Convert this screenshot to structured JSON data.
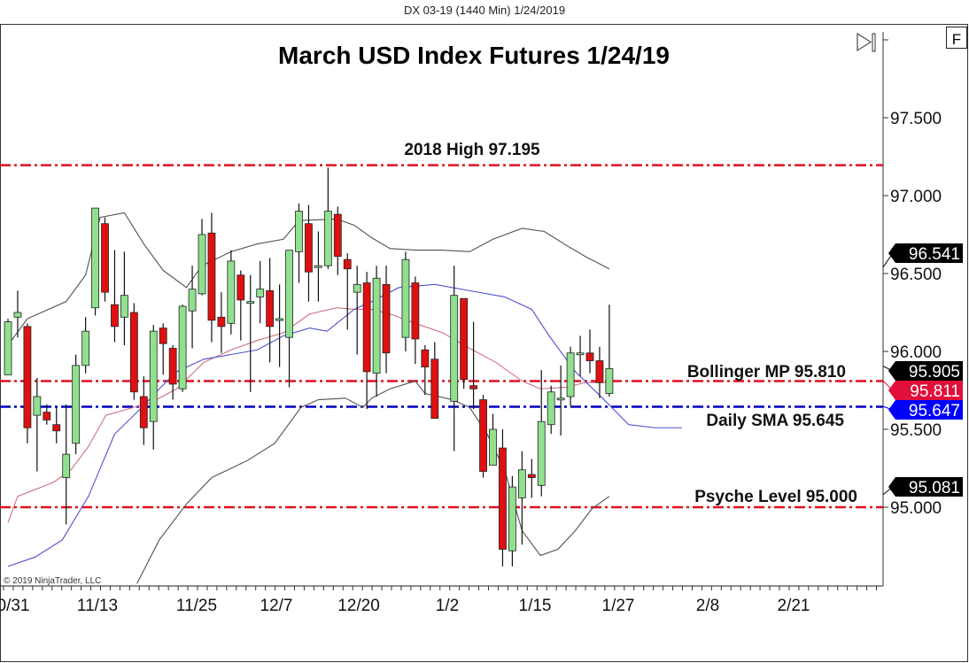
{
  "window_title": "DX 03-19 (1440 Min)  1/24/2019",
  "copyright": "© 2019 NinjaTrader, LLC",
  "buttons": {
    "scroll_end_icon": "play-to-end-icon",
    "f_label": "F"
  },
  "chart_data": {
    "type": "candlestick",
    "title": "March USD Index Futures 1/24/19",
    "ylim": [
      94.45,
      97.9
    ],
    "y_ticks": [
      "97.500",
      "97.000",
      "96.500",
      "96.000",
      "95.500",
      "95.000"
    ],
    "x_tick_labels": [
      "0/31",
      "11/13",
      "11/25",
      "12/7",
      "12/20",
      "1/2",
      "1/15",
      "1/27",
      "2/8",
      "2/21"
    ],
    "colors": {
      "up": "#90e090",
      "down": "#e01010",
      "bollinger_bands": "#505050",
      "bollinger_mid": "#d07080",
      "sma": "#5050d0",
      "level_red": "#e01020",
      "level_blue": "#0000c0"
    },
    "candles_ohlc": [
      [
        95.85,
        96.21,
        95.85,
        96.19
      ],
      [
        96.22,
        96.39,
        96.09,
        96.25
      ],
      [
        96.16,
        96.18,
        95.41,
        95.51
      ],
      [
        95.59,
        95.83,
        95.23,
        95.71
      ],
      [
        95.61,
        95.66,
        95.53,
        95.56
      ],
      [
        95.53,
        95.64,
        95.41,
        95.49
      ],
      [
        95.19,
        95.66,
        94.89,
        95.34
      ],
      [
        95.41,
        95.98,
        95.34,
        95.91
      ],
      [
        95.91,
        96.22,
        95.86,
        96.13
      ],
      [
        96.28,
        96.92,
        96.23,
        96.92
      ],
      [
        96.82,
        96.86,
        96.32,
        96.38
      ],
      [
        96.3,
        96.65,
        96.06,
        96.16
      ],
      [
        96.22,
        96.64,
        96.04,
        96.36
      ],
      [
        96.25,
        96.31,
        95.69,
        95.74
      ],
      [
        95.71,
        95.84,
        95.4,
        95.51
      ],
      [
        95.55,
        96.17,
        95.37,
        96.13
      ],
      [
        96.15,
        96.18,
        95.85,
        96.05
      ],
      [
        96.02,
        96.04,
        95.69,
        95.79
      ],
      [
        95.76,
        96.3,
        95.74,
        96.29
      ],
      [
        96.26,
        96.55,
        96.02,
        96.4
      ],
      [
        96.37,
        96.85,
        96.36,
        96.75
      ],
      [
        96.76,
        96.89,
        96.06,
        96.2
      ],
      [
        96.22,
        96.38,
        95.99,
        96.16
      ],
      [
        96.18,
        96.65,
        96.11,
        96.58
      ],
      [
        96.49,
        96.52,
        96.07,
        96.33
      ],
      [
        96.31,
        96.49,
        95.74,
        96.32
      ],
      [
        96.35,
        96.58,
        96.18,
        96.4
      ],
      [
        96.39,
        96.6,
        95.93,
        96.16
      ],
      [
        96.21,
        96.43,
        95.9,
        96.21
      ],
      [
        96.09,
        96.65,
        95.77,
        96.65
      ],
      [
        96.64,
        96.95,
        96.44,
        96.9
      ],
      [
        96.82,
        96.94,
        96.32,
        96.51
      ],
      [
        96.55,
        96.77,
        96.32,
        96.55
      ],
      [
        96.55,
        97.18,
        96.53,
        96.9
      ],
      [
        96.88,
        96.93,
        96.49,
        96.61
      ],
      [
        96.59,
        96.63,
        96.14,
        96.53
      ],
      [
        96.38,
        96.55,
        95.98,
        96.43
      ],
      [
        96.44,
        96.51,
        95.63,
        95.87
      ],
      [
        95.86,
        96.55,
        95.71,
        96.47
      ],
      [
        96.43,
        96.55,
        95.86,
        95.99
      ],
      null,
      [
        96.09,
        96.64,
        96.0,
        96.59
      ],
      [
        96.44,
        96.48,
        95.92,
        96.08
      ],
      [
        96.01,
        96.04,
        95.72,
        95.9
      ],
      [
        95.95,
        96.06,
        95.57,
        95.57
      ],
      null,
      [
        95.68,
        96.55,
        95.36,
        96.36
      ],
      [
        96.34,
        96.34,
        95.76,
        95.82
      ],
      [
        95.78,
        96.19,
        95.63,
        95.76
      ],
      [
        95.69,
        95.72,
        95.19,
        95.23
      ],
      [
        95.27,
        95.6,
        95.27,
        95.5
      ],
      [
        95.38,
        95.5,
        94.62,
        94.73
      ],
      [
        94.72,
        95.2,
        94.62,
        95.13
      ],
      [
        95.06,
        95.36,
        94.76,
        95.24
      ],
      [
        95.21,
        95.31,
        95.06,
        95.19
      ],
      [
        95.14,
        95.88,
        95.07,
        95.55
      ],
      [
        95.53,
        95.78,
        95.47,
        95.74
      ],
      [
        95.7,
        95.91,
        95.46,
        95.7
      ],
      [
        95.71,
        96.03,
        95.65,
        95.99
      ],
      [
        95.99,
        96.1,
        95.84,
        95.99
      ],
      [
        95.99,
        96.14,
        95.86,
        95.94
      ],
      [
        95.94,
        96.03,
        95.7,
        95.8
      ],
      [
        95.73,
        96.3,
        95.71,
        95.89
      ]
    ],
    "bollinger_upper": [
      [
        0,
        96.04
      ],
      [
        2,
        96.21
      ],
      [
        6,
        96.32
      ],
      [
        8,
        96.49
      ],
      [
        9.5,
        96.86
      ],
      [
        12,
        96.89
      ],
      [
        14,
        96.69
      ],
      [
        16,
        96.52
      ],
      [
        18.4,
        96.41
      ],
      [
        20,
        96.55
      ],
      [
        23,
        96.64
      ],
      [
        25.7,
        96.69
      ],
      [
        28.4,
        96.72
      ],
      [
        30,
        96.84
      ],
      [
        33.9,
        96.85
      ],
      [
        35.7,
        96.81
      ],
      [
        37.5,
        96.73
      ],
      [
        39.4,
        96.66
      ],
      [
        42,
        96.65
      ],
      [
        44.8,
        96.65
      ],
      [
        47.6,
        96.64
      ],
      [
        50,
        96.72
      ],
      [
        53,
        96.79
      ],
      [
        55.3,
        96.77
      ],
      [
        57.6,
        96.68
      ],
      [
        59.5,
        96.61
      ],
      [
        62,
        96.53
      ]
    ],
    "bollinger_lower": [
      [
        13.3,
        94.51
      ],
      [
        15.6,
        94.79
      ],
      [
        18.4,
        95.02
      ],
      [
        21,
        95.19
      ],
      [
        24.7,
        95.3
      ],
      [
        27.5,
        95.41
      ],
      [
        30.2,
        95.64
      ],
      [
        32,
        95.69
      ],
      [
        34.8,
        95.7
      ],
      [
        36.6,
        95.64
      ],
      [
        37.5,
        95.7
      ],
      [
        39.4,
        95.76
      ],
      [
        42,
        95.81
      ],
      [
        43,
        95.73
      ],
      [
        45.8,
        95.69
      ],
      [
        47.6,
        95.64
      ],
      [
        49.4,
        95.47
      ],
      [
        51.2,
        95.24
      ],
      [
        53,
        94.85
      ],
      [
        54.9,
        94.69
      ],
      [
        56.7,
        94.73
      ],
      [
        58.5,
        94.85
      ],
      [
        60.2,
        94.99
      ],
      [
        62,
        95.07
      ]
    ],
    "bollinger_mid": [
      [
        0,
        94.9
      ],
      [
        1,
        95.07
      ],
      [
        4.7,
        95.16
      ],
      [
        6.5,
        95.24
      ],
      [
        8.3,
        95.39
      ],
      [
        10.1,
        95.59
      ],
      [
        12.9,
        95.64
      ],
      [
        14.7,
        95.67
      ],
      [
        17.4,
        95.76
      ],
      [
        20.2,
        95.93
      ],
      [
        23,
        96.01
      ],
      [
        25.7,
        96.07
      ],
      [
        28.4,
        96.12
      ],
      [
        31.1,
        96.24
      ],
      [
        33.9,
        96.28
      ],
      [
        35.7,
        96.27
      ],
      [
        37.5,
        96.27
      ],
      [
        39.4,
        96.24
      ],
      [
        42,
        96.18
      ],
      [
        44.8,
        96.12
      ],
      [
        47.6,
        96.02
      ],
      [
        50.3,
        95.93
      ],
      [
        53,
        95.81
      ],
      [
        54.9,
        95.76
      ],
      [
        57.6,
        95.77
      ],
      [
        59.5,
        95.8
      ],
      [
        62,
        95.8
      ]
    ],
    "sma": [
      [
        0,
        94.62
      ],
      [
        2.8,
        94.68
      ],
      [
        5.6,
        94.79
      ],
      [
        8.3,
        95.07
      ],
      [
        11,
        95.47
      ],
      [
        13.8,
        95.64
      ],
      [
        15.6,
        95.76
      ],
      [
        17.4,
        95.87
      ],
      [
        20.2,
        95.95
      ],
      [
        23,
        95.98
      ],
      [
        25.7,
        96.01
      ],
      [
        28.4,
        96.1
      ],
      [
        31.1,
        96.15
      ],
      [
        32.9,
        96.13
      ],
      [
        35.7,
        96.27
      ],
      [
        37.5,
        96.32
      ],
      [
        40.3,
        96.41
      ],
      [
        44,
        96.43
      ],
      [
        47.6,
        96.39
      ],
      [
        51.2,
        96.35
      ],
      [
        54,
        96.27
      ],
      [
        55.8,
        96.1
      ],
      [
        58.5,
        95.87
      ],
      [
        61.3,
        95.7
      ],
      [
        64,
        95.53
      ],
      [
        66.7,
        95.51
      ],
      [
        69.5,
        95.51
      ]
    ],
    "levels": [
      {
        "label": "2018 High 97.195",
        "value": 97.195,
        "color": "#e01020"
      },
      {
        "label": "Bollinger MP 95.810",
        "value": 95.81,
        "color": "#e01020"
      },
      {
        "label": "Daily SMA 95.645",
        "value": 95.645,
        "color": "#0000c0"
      },
      {
        "label": "Psyche Level 95.000",
        "value": 95.0,
        "color": "#e01020"
      }
    ],
    "price_tags": [
      {
        "text": "96.541",
        "value": 96.541,
        "color": "#000000"
      },
      {
        "text": "95.811",
        "value": 95.811,
        "color": "#e0103a"
      },
      {
        "text": "95.905",
        "value": 95.905,
        "color": "#000000"
      },
      {
        "text": "95.647",
        "value": 95.647,
        "color": "#0000ff"
      },
      {
        "text": "95.081",
        "value": 95.081,
        "color": "#000000"
      }
    ]
  }
}
